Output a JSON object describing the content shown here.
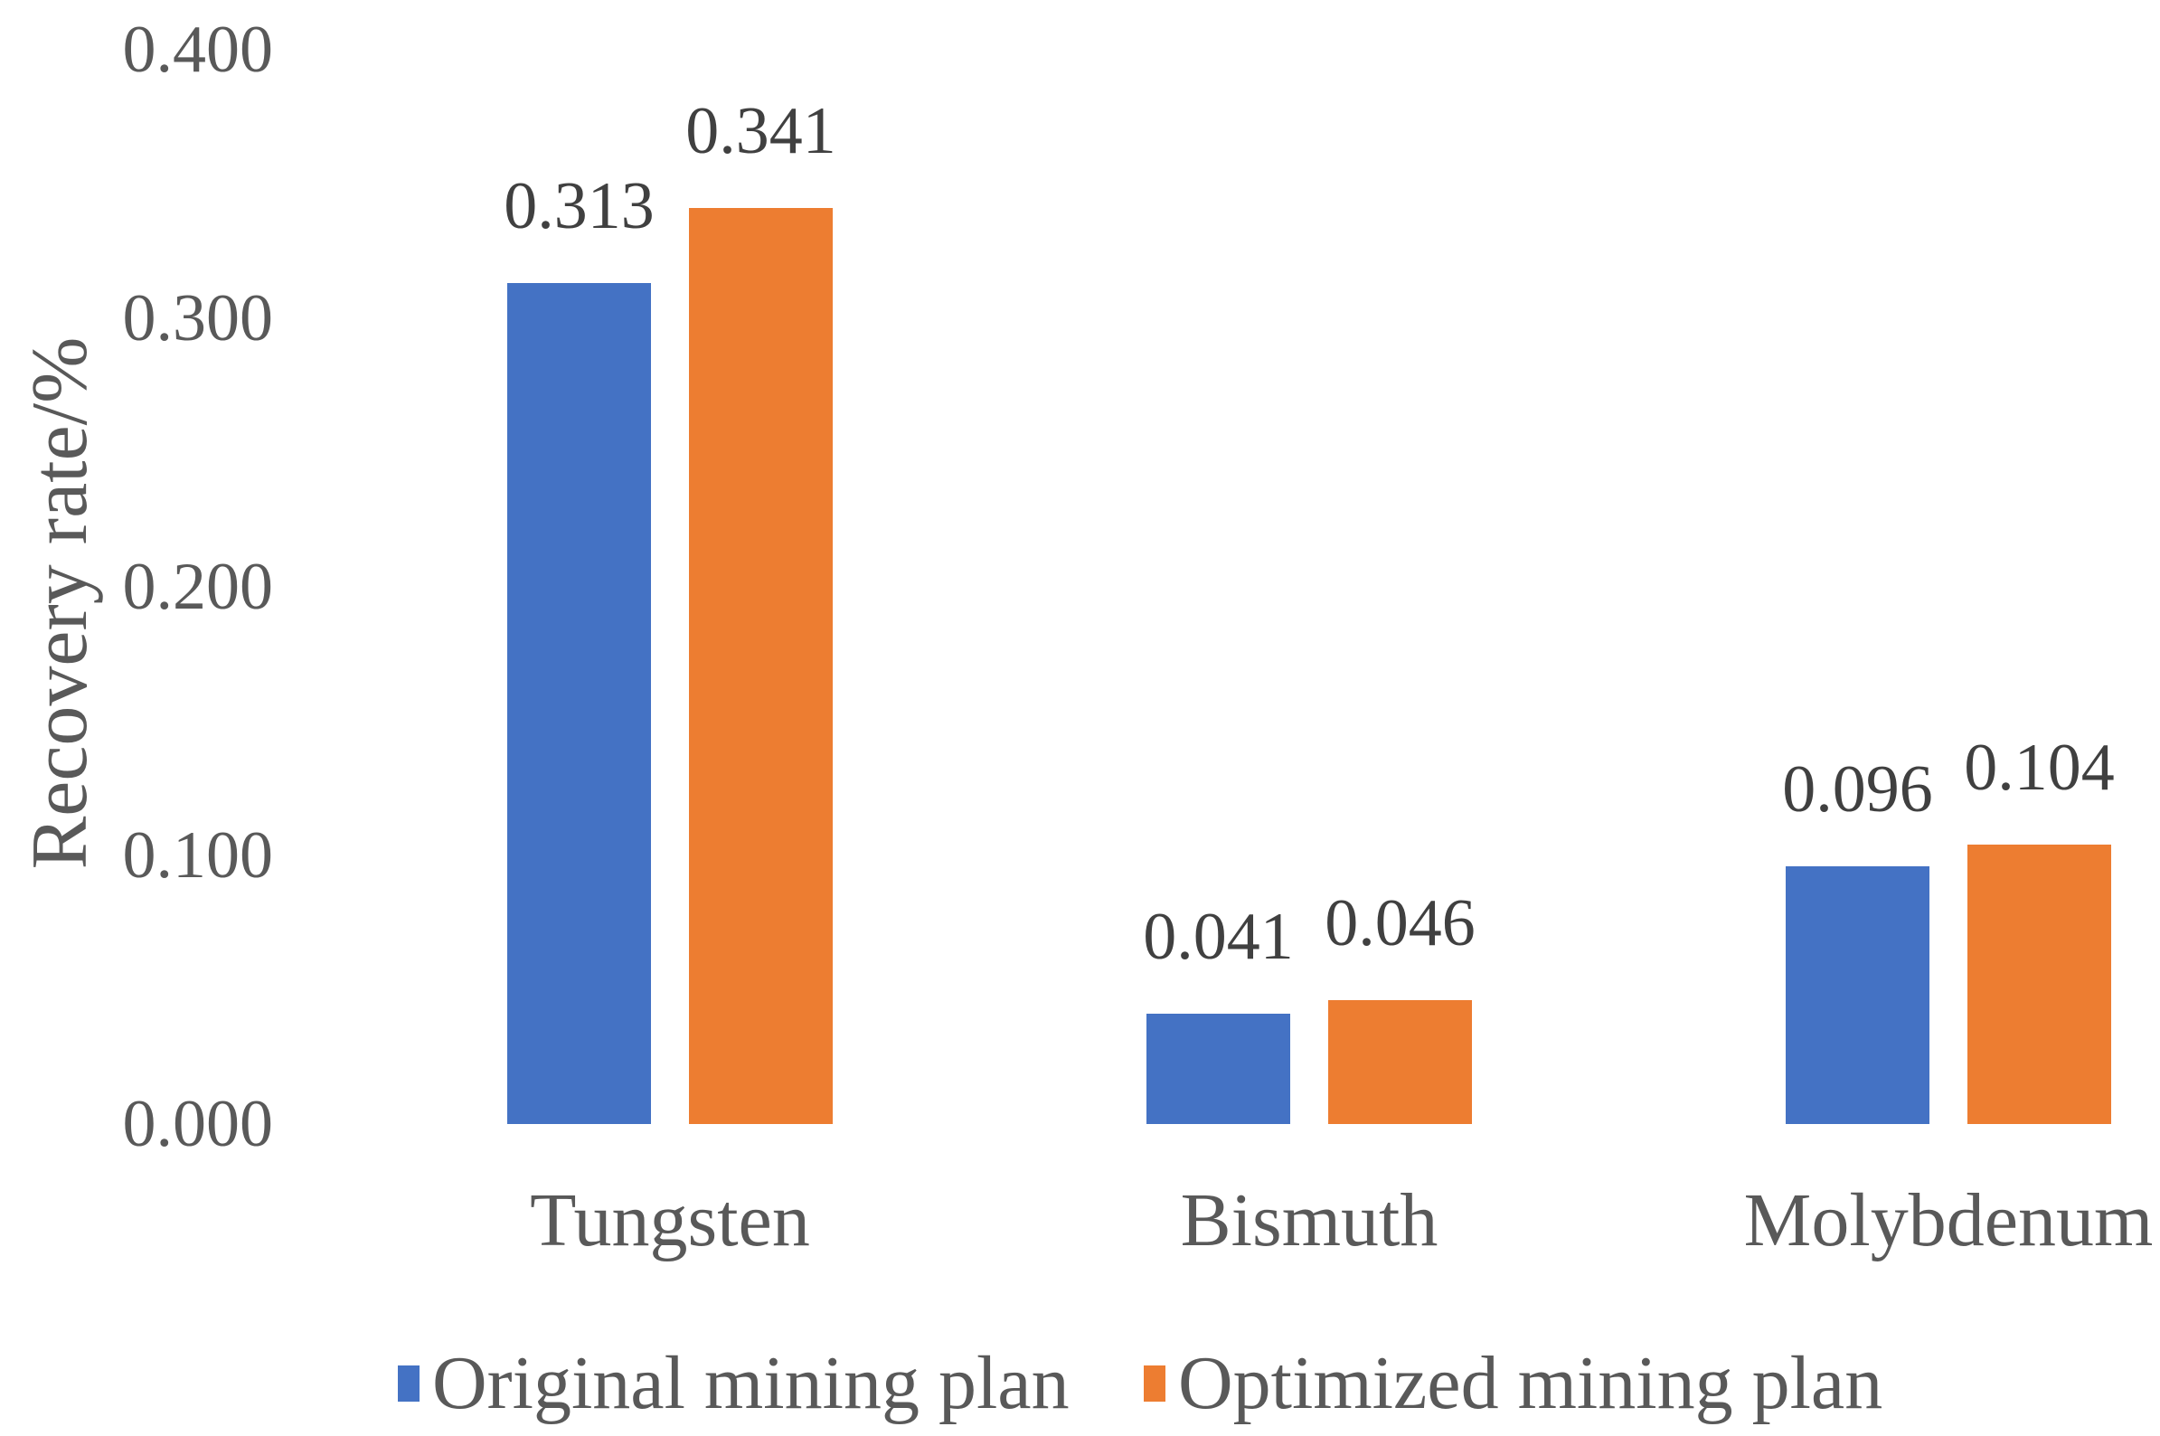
{
  "chart_data": {
    "type": "bar",
    "ylabel": "Recovery rate/%",
    "categories": [
      "Tungsten",
      "Bismuth",
      "Molybdenum"
    ],
    "series": [
      {
        "name": "Original mining plan",
        "color": "#4472C4",
        "values": [
          0.313,
          0.041,
          0.096
        ],
        "labels": [
          "0.313",
          "0.041",
          "0.096"
        ]
      },
      {
        "name": "Optimized mining plan",
        "color": "#ED7D31",
        "values": [
          0.341,
          0.046,
          0.104
        ],
        "labels": [
          "0.341",
          "0.046",
          "0.104"
        ]
      }
    ],
    "y_axis": {
      "min": 0,
      "max": 0.4,
      "tick_step": 0.1,
      "ticks": [
        "0.400",
        "0.300",
        "0.200",
        "0.100",
        "0.000"
      ]
    },
    "grid": false,
    "legend_position": "bottom"
  }
}
